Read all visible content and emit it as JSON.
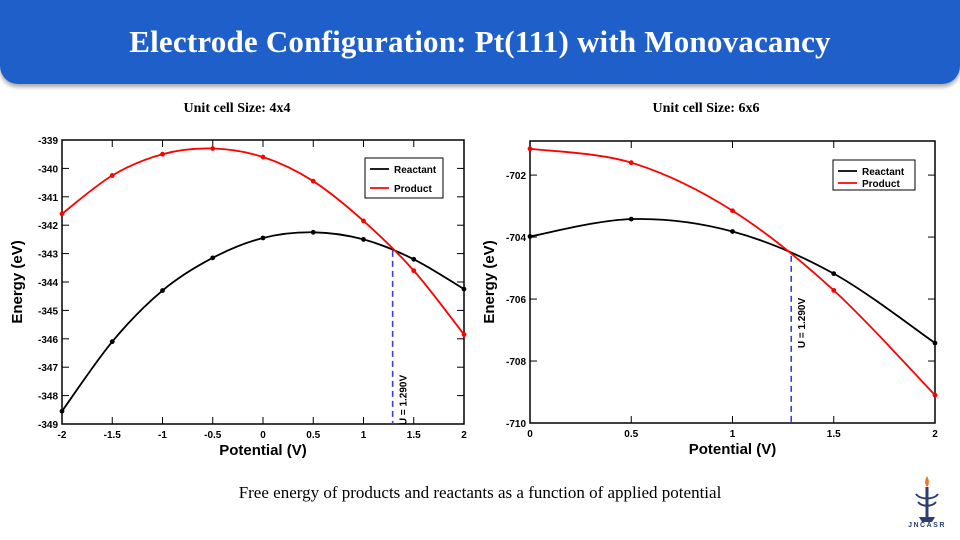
{
  "slide": {
    "title": "Electrode Configuration: Pt(111) with Monovacancy",
    "caption": "Free energy of products and reactants as a function of applied potential",
    "logo_text": "JNCASR"
  },
  "colors": {
    "banner": "#1f5fc9",
    "reactant": "#000000",
    "product": "#ff0000",
    "marker": "#3c3cdc"
  },
  "chart_data": [
    {
      "type": "line",
      "title": "Unit cell Size: 4x4",
      "xlabel": "Potential (V)",
      "ylabel": "Energy (eV)",
      "xlim": [
        -2,
        2
      ],
      "ylim": [
        -349,
        -339
      ],
      "xticks": [
        -2,
        -1.5,
        -1,
        -0.5,
        0,
        0.5,
        1,
        1.5,
        2
      ],
      "xtick_labels": [
        "-2",
        "-1.5",
        "-1",
        "-0.5",
        "0",
        "0.5",
        "1",
        "1.5",
        "2"
      ],
      "yticks": [
        -349,
        -348,
        -347,
        -346,
        -345,
        -344,
        -343,
        -342,
        -341,
        -340,
        -339
      ],
      "ytick_labels": [
        "-349",
        "-348",
        "-347",
        "-346",
        "-345",
        "-344",
        "-343",
        "-342",
        "-341",
        "-340",
        "-339"
      ],
      "grid": false,
      "legend_position": "top-right",
      "series": [
        {
          "name": "Reactant",
          "color": "#000000",
          "x": [
            -2,
            -1.5,
            -1,
            -0.5,
            0,
            0.5,
            1,
            1.5,
            2
          ],
          "y": [
            -348.55,
            -346.1,
            -344.3,
            -343.15,
            -342.45,
            -342.25,
            -342.5,
            -343.2,
            -344.25
          ]
        },
        {
          "name": "Product",
          "color": "#ff0000",
          "x": [
            -2,
            -1.5,
            -1,
            -0.5,
            0,
            0.5,
            1,
            1.5,
            2
          ],
          "y": [
            -341.6,
            -340.25,
            -339.5,
            -339.3,
            -339.6,
            -340.45,
            -341.85,
            -343.6,
            -345.85
          ]
        }
      ],
      "annotation": {
        "x": 1.29,
        "label": "U = 1.290V"
      }
    },
    {
      "type": "line",
      "title": "Unit cell Size: 6x6",
      "xlabel": "Potential (V)",
      "ylabel": "Energy (eV)",
      "xlim": [
        0,
        2
      ],
      "ylim": [
        -710,
        -700.9
      ],
      "xticks": [
        0,
        0.5,
        1,
        1.5,
        2
      ],
      "xtick_labels": [
        "0",
        "0.5",
        "1",
        "1.5",
        "2"
      ],
      "yticks": [
        -710,
        -708,
        -706,
        -704,
        -702
      ],
      "ytick_labels": [
        "-710",
        "-708",
        "-706",
        "-704",
        "-702"
      ],
      "grid": false,
      "legend_position": "top-right",
      "series": [
        {
          "name": "Reactant",
          "color": "#000000",
          "x": [
            0,
            0.5,
            1,
            1.5,
            2
          ],
          "y": [
            -703.98,
            -703.42,
            -703.82,
            -705.18,
            -707.42
          ]
        },
        {
          "name": "Product",
          "color": "#ff0000",
          "x": [
            0,
            0.5,
            1,
            1.5,
            2
          ],
          "y": [
            -701.15,
            -701.6,
            -703.15,
            -705.72,
            -709.1
          ]
        }
      ],
      "annotation": {
        "x": 1.29,
        "label": "U = 1.290V"
      }
    }
  ]
}
